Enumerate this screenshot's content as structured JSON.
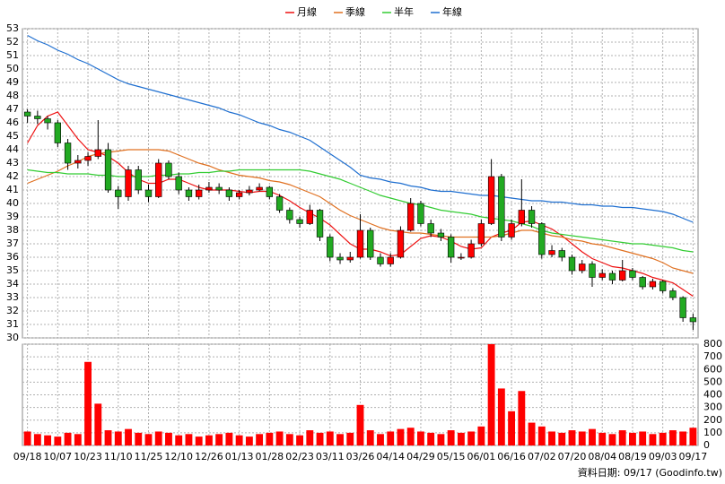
{
  "chart_data": {
    "type": "candlestick",
    "legend": "top",
    "grid": true,
    "source": "資料日期: 09/17 (Goodinfo.tw)",
    "categories": [
      "09/18",
      null,
      null,
      "10/07",
      null,
      null,
      "10/23",
      null,
      null,
      "11/10",
      null,
      null,
      "11/25",
      null,
      null,
      "12/10",
      null,
      null,
      "12/26",
      null,
      null,
      "01/13",
      null,
      null,
      "01/28",
      null,
      null,
      "02/23",
      null,
      null,
      "03/11",
      null,
      null,
      "03/26",
      null,
      null,
      "04/14",
      null,
      null,
      "04/29",
      null,
      null,
      "05/15",
      null,
      null,
      "06/01",
      null,
      null,
      "06/16",
      null,
      null,
      "07/02",
      null,
      null,
      "07/20",
      null,
      null,
      "08/04",
      null,
      null,
      "08/19",
      null,
      null,
      "09/03",
      null,
      null,
      "09/17"
    ],
    "up_color": "#ff0000",
    "down_color": "#22aa22",
    "ohlc": [
      [
        46.8,
        47,
        46,
        46.5
      ],
      [
        46.5,
        46.9,
        45.9,
        46.3
      ],
      [
        46.3,
        46.5,
        45.5,
        46
      ],
      [
        46,
        46.2,
        44.2,
        44.5
      ],
      [
        44.5,
        44.8,
        42.5,
        43
      ],
      [
        43,
        43.6,
        42.6,
        43.2
      ],
      [
        43.2,
        43.8,
        42.8,
        43.5
      ],
      [
        43.5,
        46.2,
        43.3,
        44
      ],
      [
        44,
        44.5,
        40.8,
        41
      ],
      [
        41,
        41.3,
        39.6,
        40.5
      ],
      [
        40.5,
        42.8,
        40.2,
        42.5
      ],
      [
        42.5,
        42.8,
        40.7,
        41
      ],
      [
        41,
        41.4,
        40.1,
        40.5
      ],
      [
        40.5,
        43.3,
        40.4,
        43
      ],
      [
        43,
        43.2,
        41.8,
        42
      ],
      [
        42,
        42.3,
        40.7,
        41
      ],
      [
        41,
        41.2,
        40.2,
        40.5
      ],
      [
        40.5,
        41.4,
        40.3,
        41
      ],
      [
        41,
        41.6,
        40.8,
        41.2
      ],
      [
        41.2,
        41.5,
        40.7,
        41
      ],
      [
        41,
        41.2,
        40.2,
        40.5
      ],
      [
        40.5,
        41,
        40.3,
        40.8
      ],
      [
        40.8,
        41.3,
        40.6,
        41
      ],
      [
        41,
        41.5,
        40.9,
        41.2
      ],
      [
        41.2,
        41.3,
        40.3,
        40.5
      ],
      [
        40.5,
        40.7,
        39.3,
        39.5
      ],
      [
        39.5,
        39.7,
        38.5,
        38.8
      ],
      [
        38.8,
        39,
        38.2,
        38.5
      ],
      [
        38.5,
        39.9,
        38.4,
        39.5
      ],
      [
        39.5,
        39.6,
        37.2,
        37.5
      ],
      [
        37.5,
        37.7,
        35.7,
        36
      ],
      [
        36,
        36.3,
        35.5,
        35.8
      ],
      [
        35.8,
        36.4,
        35.6,
        36
      ],
      [
        36,
        39.2,
        35.9,
        38
      ],
      [
        38,
        38.2,
        35.8,
        36
      ],
      [
        36,
        36.3,
        35.3,
        35.5
      ],
      [
        35.5,
        36.3,
        35.3,
        36
      ],
      [
        36,
        38.3,
        35.9,
        38
      ],
      [
        38,
        40.4,
        37.9,
        40
      ],
      [
        40,
        40.2,
        38.3,
        38.5
      ],
      [
        38.5,
        38.8,
        37.5,
        37.8
      ],
      [
        37.8,
        38.1,
        37.2,
        37.5
      ],
      [
        37.5,
        37.7,
        35.6,
        36
      ],
      [
        36,
        36.3,
        35.8,
        36
      ],
      [
        36,
        37.3,
        35.9,
        37
      ],
      [
        37,
        38.8,
        36.8,
        38.5
      ],
      [
        38.5,
        43.3,
        38.4,
        42
      ],
      [
        42,
        42.2,
        37.2,
        37.5
      ],
      [
        37.5,
        38.8,
        37.3,
        38.5
      ],
      [
        38.5,
        41.8,
        38.3,
        39.5
      ],
      [
        39.5,
        39.8,
        38.2,
        38.5
      ],
      [
        38.5,
        38.6,
        35.9,
        36.2
      ],
      [
        36.2,
        36.9,
        36,
        36.5
      ],
      [
        36.5,
        36.7,
        35.7,
        36
      ],
      [
        36,
        36.2,
        34.7,
        35
      ],
      [
        35,
        35.8,
        34.8,
        35.5
      ],
      [
        35.5,
        35.7,
        33.8,
        34.5
      ],
      [
        34.5,
        35.1,
        34.3,
        34.8
      ],
      [
        34.8,
        35,
        34,
        34.3
      ],
      [
        34.3,
        35.8,
        34.2,
        35
      ],
      [
        35,
        35.2,
        34.3,
        34.5
      ],
      [
        34.5,
        34.6,
        33.6,
        33.8
      ],
      [
        33.8,
        34.4,
        33.6,
        34.2
      ],
      [
        34.2,
        34.3,
        33.3,
        33.5
      ],
      [
        33.5,
        33.7,
        32.8,
        33
      ],
      [
        33,
        33.1,
        31.2,
        31.5
      ],
      [
        31.5,
        31.8,
        30.6,
        31.2
      ]
    ],
    "series": [
      {
        "name": "月線",
        "color": "#ee1111",
        "values": [
          44.5,
          45.8,
          46.5,
          46.8,
          45.8,
          44.8,
          44,
          43.8,
          43.5,
          43,
          42.3,
          41.8,
          41.5,
          41.5,
          41.8,
          41.8,
          41.5,
          41.2,
          41,
          41,
          41,
          40.9,
          40.8,
          40.9,
          40.9,
          40.6,
          40.2,
          39.7,
          39.3,
          38.9,
          38.4,
          37.7,
          37,
          36.6,
          36.6,
          36.4,
          36.1,
          36.2,
          36.8,
          37.4,
          37.6,
          37.5,
          37.2,
          36.8,
          36.6,
          36.7,
          37.5,
          37.8,
          38,
          38.6,
          38.7,
          38.4,
          38.1,
          37.6,
          37,
          36.4,
          35.9,
          35.6,
          35.3,
          35.2,
          35,
          34.8,
          34.5,
          34.3,
          34.1,
          33.6,
          33.1
        ]
      },
      {
        "name": "季線",
        "color": "#e07020",
        "values": [
          41.5,
          41.8,
          42.1,
          42.4,
          42.8,
          43.1,
          43.5,
          43.7,
          43.8,
          43.9,
          44,
          44,
          44,
          44,
          43.9,
          43.6,
          43.3,
          43,
          42.8,
          42.5,
          42.3,
          42.1,
          42,
          41.9,
          41.7,
          41.6,
          41.4,
          41.1,
          40.8,
          40.5,
          40,
          39.5,
          39.1,
          38.8,
          38.5,
          38.2,
          38,
          37.9,
          37.8,
          37.8,
          37.7,
          37.6,
          37.5,
          37.5,
          37.5,
          37.5,
          37.5,
          37.6,
          37.8,
          38,
          38,
          37.8,
          37.6,
          37.5,
          37.3,
          37.2,
          37,
          36.9,
          36.7,
          36.5,
          36.3,
          36.1,
          35.9,
          35.6,
          35.2,
          35,
          34.8
        ]
      },
      {
        "name": "半年",
        "color": "#33cc33",
        "values": [
          42.5,
          42.4,
          42.3,
          42.3,
          42.2,
          42.2,
          42.2,
          42.1,
          42.1,
          42,
          42,
          42,
          42,
          42.1,
          42.1,
          42.2,
          42.2,
          42.3,
          42.3,
          42.4,
          42.4,
          42.5,
          42.5,
          42.5,
          42.5,
          42.5,
          42.5,
          42.5,
          42.4,
          42.2,
          42,
          41.8,
          41.5,
          41.2,
          40.9,
          40.6,
          40.4,
          40.2,
          40,
          39.9,
          39.7,
          39.5,
          39.4,
          39.3,
          39.2,
          39,
          38.9,
          38.8,
          38.7,
          38.5,
          38.3,
          38,
          37.8,
          37.7,
          37.6,
          37.5,
          37.4,
          37.3,
          37.2,
          37.1,
          37,
          37,
          36.9,
          36.8,
          36.7,
          36.5,
          36.4
        ]
      },
      {
        "name": "年線",
        "color": "#1f6fd0",
        "values": [
          52.5,
          52.1,
          51.8,
          51.4,
          51.1,
          50.7,
          50.4,
          50,
          49.6,
          49.2,
          48.9,
          48.7,
          48.5,
          48.3,
          48.1,
          47.9,
          47.7,
          47.5,
          47.3,
          47.1,
          46.8,
          46.6,
          46.3,
          46,
          45.8,
          45.5,
          45.3,
          45,
          44.7,
          44.2,
          43.7,
          43.2,
          42.7,
          42.1,
          41.9,
          41.8,
          41.6,
          41.5,
          41.3,
          41.2,
          41,
          40.9,
          40.9,
          40.8,
          40.7,
          40.6,
          40.6,
          40.5,
          40.4,
          40.3,
          40.2,
          40.2,
          40.1,
          40.1,
          40,
          39.9,
          39.9,
          39.8,
          39.8,
          39.7,
          39.7,
          39.6,
          39.5,
          39.4,
          39.2,
          38.9,
          38.6
        ]
      }
    ],
    "volume": {
      "color": "#ff0000",
      "axis": "y2",
      "values": [
        110,
        90,
        80,
        70,
        100,
        90,
        660,
        330,
        120,
        110,
        130,
        100,
        90,
        110,
        100,
        80,
        90,
        70,
        80,
        90,
        100,
        80,
        70,
        90,
        100,
        110,
        90,
        80,
        120,
        100,
        110,
        90,
        100,
        320,
        120,
        90,
        110,
        130,
        140,
        110,
        100,
        90,
        120,
        100,
        110,
        150,
        800,
        450,
        270,
        430,
        180,
        150,
        110,
        100,
        120,
        110,
        130,
        100,
        90,
        120,
        100,
        110,
        90,
        100,
        120,
        110,
        140
      ]
    },
    "ylim": [
      30,
      53
    ],
    "yticks": [
      30,
      31,
      32,
      33,
      34,
      35,
      36,
      37,
      38,
      39,
      40,
      41,
      42,
      43,
      44,
      45,
      46,
      47,
      48,
      49,
      50,
      51,
      52,
      53
    ],
    "y2lim": [
      0,
      800
    ],
    "y2ticks": [
      0,
      100,
      200,
      300,
      400,
      500,
      600,
      700,
      800
    ]
  }
}
